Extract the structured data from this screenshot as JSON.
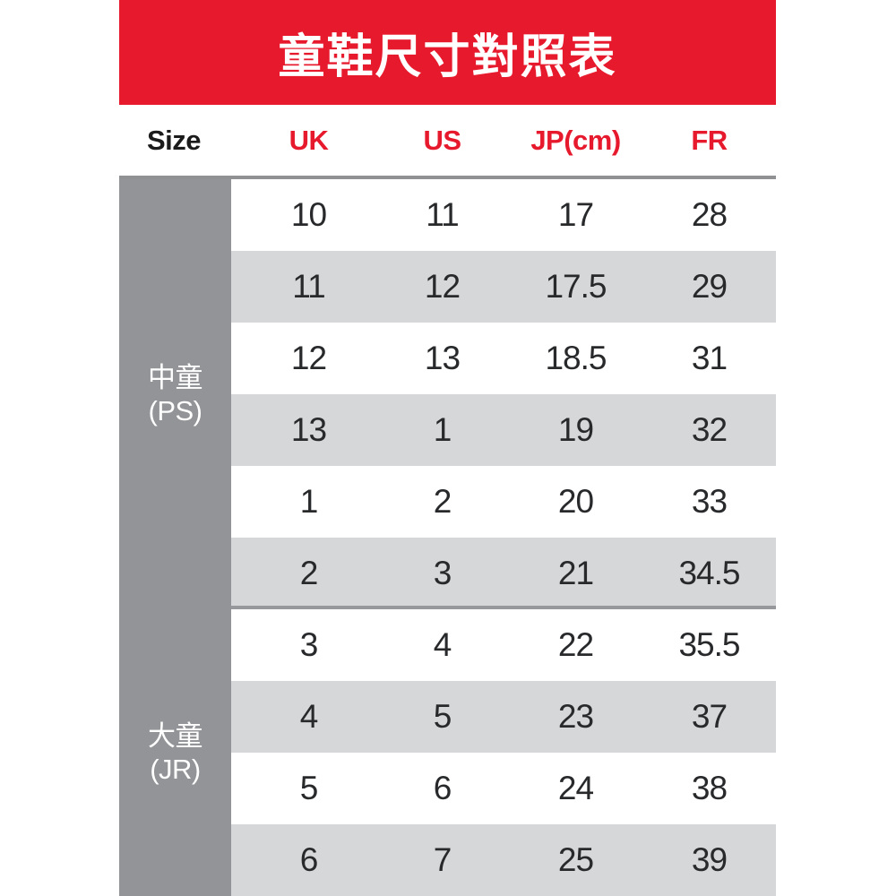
{
  "title": "童鞋尺寸對照表",
  "header": {
    "size": "Size",
    "uk": "UK",
    "us": "US",
    "jp": "JP(cm)",
    "fr": "FR"
  },
  "groups": [
    {
      "name": "中童",
      "code": "(PS)"
    },
    {
      "name": "大童",
      "code": "(JR)"
    }
  ],
  "rows": [
    {
      "group": 0,
      "uk": "10",
      "us": "11",
      "jp": "17",
      "fr": "28"
    },
    {
      "group": 0,
      "uk": "11",
      "us": "12",
      "jp": "17.5",
      "fr": "29"
    },
    {
      "group": 0,
      "uk": "12",
      "us": "13",
      "jp": "18.5",
      "fr": "31"
    },
    {
      "group": 0,
      "uk": "13",
      "us": "1",
      "jp": "19",
      "fr": "32"
    },
    {
      "group": 0,
      "uk": "1",
      "us": "2",
      "jp": "20",
      "fr": "33"
    },
    {
      "group": 0,
      "uk": "2",
      "us": "3",
      "jp": "21",
      "fr": "34.5"
    },
    {
      "group": 1,
      "uk": "3",
      "us": "4",
      "jp": "22",
      "fr": "35.5"
    },
    {
      "group": 1,
      "uk": "4",
      "us": "5",
      "jp": "23",
      "fr": "37"
    },
    {
      "group": 1,
      "uk": "5",
      "us": "6",
      "jp": "24",
      "fr": "38"
    },
    {
      "group": 1,
      "uk": "6",
      "us": "7",
      "jp": "25",
      "fr": "39"
    }
  ],
  "colors": {
    "banner_red": "#e7192d",
    "header_accent_red": "#e7192d",
    "sidebar_gray": "#929497",
    "shaded_row_gray": "#d6d7d9",
    "divider_gray": "#8f9193",
    "text_dark": "#28292b",
    "text_white": "#ffffff"
  },
  "chart_data": {
    "type": "table",
    "title": "童鞋尺寸對照表",
    "columns": [
      "Size",
      "UK",
      "US",
      "JP(cm)",
      "FR"
    ],
    "row_groups": [
      {
        "size_group": "中童 (PS)",
        "rows": [
          [
            10,
            11,
            17,
            28
          ],
          [
            11,
            12,
            17.5,
            29
          ],
          [
            12,
            13,
            18.5,
            31
          ],
          [
            13,
            1,
            19,
            32
          ],
          [
            1,
            2,
            20,
            33
          ],
          [
            2,
            3,
            21,
            34.5
          ]
        ]
      },
      {
        "size_group": "大童 (JR)",
        "rows": [
          [
            3,
            4,
            22,
            35.5
          ],
          [
            4,
            5,
            23,
            37
          ],
          [
            5,
            6,
            24,
            38
          ],
          [
            6,
            7,
            25,
            39
          ]
        ]
      }
    ],
    "layout": {
      "striped_rows": true,
      "group_divider_after_row": 6
    }
  }
}
